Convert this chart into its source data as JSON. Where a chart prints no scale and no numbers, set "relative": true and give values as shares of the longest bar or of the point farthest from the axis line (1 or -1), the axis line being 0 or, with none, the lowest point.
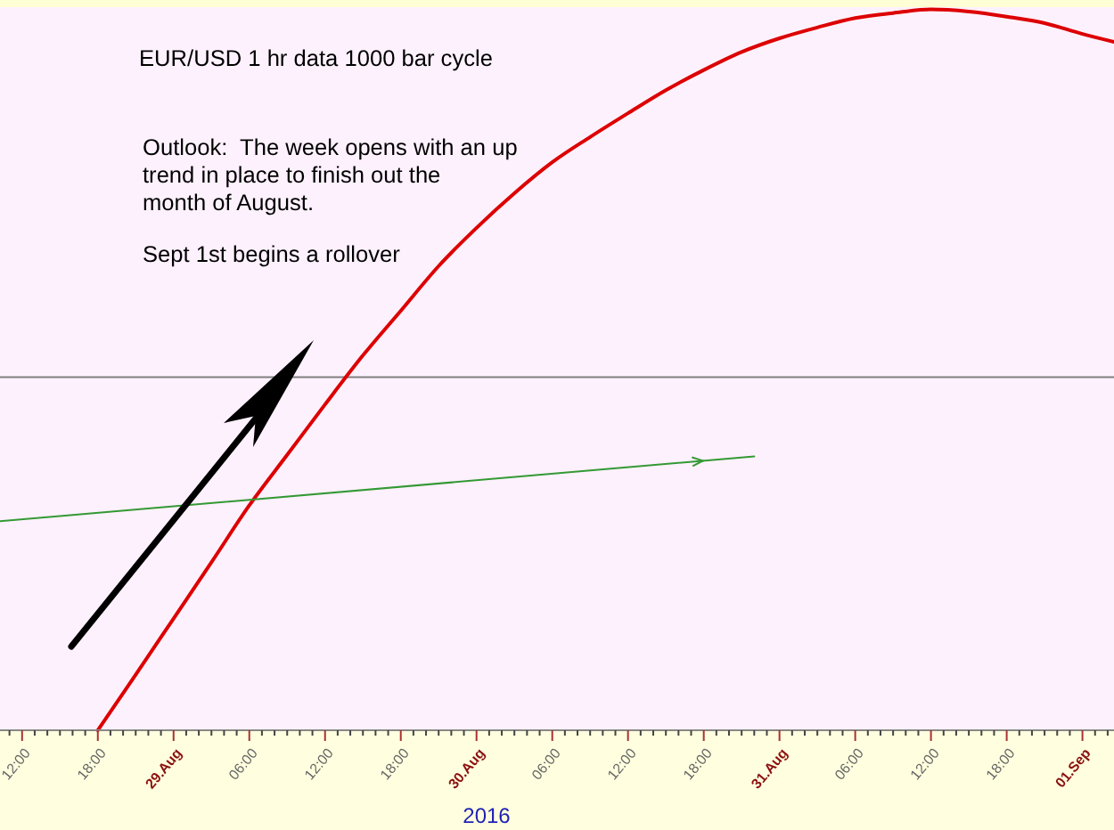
{
  "chart_data": {
    "type": "line",
    "title": "EUR/USD 1 hr data 1000 bar cycle",
    "xlabel": "2016",
    "annotations": [
      "Outlook:  The week opens with an up\ntrend in place to finish out the\nmonth of August.",
      "Sept 1st begins a rollover"
    ],
    "relative": true,
    "xlim": [
      "2016-08-28T10:15",
      "2016-09-01T02:30"
    ],
    "xticks": [
      {
        "value": "2016-08-28T11:00",
        "label": null
      },
      {
        "value": "2016-08-28T12:00",
        "label": "12:00"
      },
      {
        "value": "2016-08-28T13:00",
        "label": null
      },
      {
        "value": "2016-08-28T14:00",
        "label": null
      },
      {
        "value": "2016-08-28T15:00",
        "label": null
      },
      {
        "value": "2016-08-28T16:00",
        "label": null
      },
      {
        "value": "2016-08-28T17:00",
        "label": null
      },
      {
        "value": "2016-08-28T18:00",
        "label": "18:00"
      },
      {
        "value": "2016-08-28T19:00",
        "label": null
      },
      {
        "value": "2016-08-28T20:00",
        "label": null
      },
      {
        "value": "2016-08-28T21:00",
        "label": null
      },
      {
        "value": "2016-08-28T22:00",
        "label": null
      },
      {
        "value": "2016-08-28T23:00",
        "label": null
      },
      {
        "value": "2016-08-29T00:00",
        "label": "29.Aug"
      },
      {
        "value": "2016-08-29T01:00",
        "label": null
      },
      {
        "value": "2016-08-29T02:00",
        "label": null
      },
      {
        "value": "2016-08-29T03:00",
        "label": null
      },
      {
        "value": "2016-08-29T04:00",
        "label": null
      },
      {
        "value": "2016-08-29T05:00",
        "label": null
      },
      {
        "value": "2016-08-29T06:00",
        "label": "06:00"
      },
      {
        "value": "2016-08-29T07:00",
        "label": null
      },
      {
        "value": "2016-08-29T08:00",
        "label": null
      },
      {
        "value": "2016-08-29T09:00",
        "label": null
      },
      {
        "value": "2016-08-29T10:00",
        "label": null
      },
      {
        "value": "2016-08-29T11:00",
        "label": null
      },
      {
        "value": "2016-08-29T12:00",
        "label": "12:00"
      },
      {
        "value": "2016-08-29T13:00",
        "label": null
      },
      {
        "value": "2016-08-29T14:00",
        "label": null
      },
      {
        "value": "2016-08-29T15:00",
        "label": null
      },
      {
        "value": "2016-08-29T16:00",
        "label": null
      },
      {
        "value": "2016-08-29T17:00",
        "label": null
      },
      {
        "value": "2016-08-29T18:00",
        "label": "18:00"
      },
      {
        "value": "2016-08-29T19:00",
        "label": null
      },
      {
        "value": "2016-08-29T20:00",
        "label": null
      },
      {
        "value": "2016-08-29T21:00",
        "label": null
      },
      {
        "value": "2016-08-29T22:00",
        "label": null
      },
      {
        "value": "2016-08-29T23:00",
        "label": null
      },
      {
        "value": "2016-08-30T00:00",
        "label": "30.Aug"
      },
      {
        "value": "2016-08-30T01:00",
        "label": null
      },
      {
        "value": "2016-08-30T02:00",
        "label": null
      },
      {
        "value": "2016-08-30T03:00",
        "label": null
      },
      {
        "value": "2016-08-30T04:00",
        "label": null
      },
      {
        "value": "2016-08-30T05:00",
        "label": null
      },
      {
        "value": "2016-08-30T06:00",
        "label": "06:00"
      },
      {
        "value": "2016-08-30T07:00",
        "label": null
      },
      {
        "value": "2016-08-30T08:00",
        "label": null
      },
      {
        "value": "2016-08-30T09:00",
        "label": null
      },
      {
        "value": "2016-08-30T10:00",
        "label": null
      },
      {
        "value": "2016-08-30T11:00",
        "label": null
      },
      {
        "value": "2016-08-30T12:00",
        "label": "12:00"
      },
      {
        "value": "2016-08-30T13:00",
        "label": null
      },
      {
        "value": "2016-08-30T14:00",
        "label": null
      },
      {
        "value": "2016-08-30T15:00",
        "label": null
      },
      {
        "value": "2016-08-30T16:00",
        "label": null
      },
      {
        "value": "2016-08-30T17:00",
        "label": null
      },
      {
        "value": "2016-08-30T18:00",
        "label": "18:00"
      },
      {
        "value": "2016-08-30T19:00",
        "label": null
      },
      {
        "value": "2016-08-30T20:00",
        "label": null
      },
      {
        "value": "2016-08-30T21:00",
        "label": null
      },
      {
        "value": "2016-08-30T22:00",
        "label": null
      },
      {
        "value": "2016-08-30T23:00",
        "label": null
      },
      {
        "value": "2016-08-31T00:00",
        "label": "31.Aug"
      },
      {
        "value": "2016-08-31T01:00",
        "label": null
      },
      {
        "value": "2016-08-31T02:00",
        "label": null
      },
      {
        "value": "2016-08-31T03:00",
        "label": null
      },
      {
        "value": "2016-08-31T04:00",
        "label": null
      },
      {
        "value": "2016-08-31T05:00",
        "label": null
      },
      {
        "value": "2016-08-31T06:00",
        "label": "06:00"
      },
      {
        "value": "2016-08-31T07:00",
        "label": null
      },
      {
        "value": "2016-08-31T08:00",
        "label": null
      },
      {
        "value": "2016-08-31T09:00",
        "label": null
      },
      {
        "value": "2016-08-31T10:00",
        "label": null
      },
      {
        "value": "2016-08-31T11:00",
        "label": null
      },
      {
        "value": "2016-08-31T12:00",
        "label": "12:00"
      },
      {
        "value": "2016-08-31T13:00",
        "label": null
      },
      {
        "value": "2016-08-31T14:00",
        "label": null
      },
      {
        "value": "2016-08-31T15:00",
        "label": null
      },
      {
        "value": "2016-08-31T16:00",
        "label": null
      },
      {
        "value": "2016-08-31T17:00",
        "label": null
      },
      {
        "value": "2016-08-31T18:00",
        "label": "18:00"
      },
      {
        "value": "2016-08-31T19:00",
        "label": null
      },
      {
        "value": "2016-08-31T20:00",
        "label": null
      },
      {
        "value": "2016-08-31T21:00",
        "label": null
      },
      {
        "value": "2016-08-31T22:00",
        "label": null
      },
      {
        "value": "2016-08-31T23:00",
        "label": null
      },
      {
        "value": "2016-09-01T00:00",
        "label": "01.Sep"
      },
      {
        "value": "2016-09-01T01:00",
        "label": null
      },
      {
        "value": "2016-09-01T02:00",
        "label": null
      }
    ],
    "series": [
      {
        "color": "#dd0000",
        "x": [
          "2016-08-28T18:00",
          "2016-08-28T21:00",
          "2016-08-29T00:00",
          "2016-08-29T03:00",
          "2016-08-29T06:00",
          "2016-08-29T09:00",
          "2016-08-29T12:00",
          "2016-08-29T15:00",
          "2016-08-29T18:00",
          "2016-08-29T21:00",
          "2016-08-30T00:00",
          "2016-08-30T03:00",
          "2016-08-30T06:00",
          "2016-08-30T09:00",
          "2016-08-30T12:00",
          "2016-08-30T15:00",
          "2016-08-30T18:00",
          "2016-08-30T21:00",
          "2016-08-31T00:00",
          "2016-08-31T03:00",
          "2016-08-31T06:00",
          "2016-08-31T09:00",
          "2016-08-31T12:00",
          "2016-08-31T15:00",
          "2016-08-31T18:00",
          "2016-08-31T21:00",
          "2016-09-01T00:00",
          "2016-09-01T02:30"
        ],
        "values": [
          0,
          0.077,
          0.155,
          0.233,
          0.312,
          0.382,
          0.452,
          0.52,
          0.582,
          0.644,
          0.697,
          0.745,
          0.788,
          0.823,
          0.856,
          0.888,
          0.916,
          0.941,
          0.96,
          0.975,
          0.988,
          0.995,
          1,
          0.997,
          0.99,
          0.981,
          0.966,
          0.955
        ]
      },
      {
        "color": "#339933",
        "x": [
          "2016-08-28T10:15",
          "2016-08-30T22:00"
        ],
        "values": [
          0.29,
          0.38
        ]
      }
    ],
    "ref_lines": [
      {
        "axis": "y",
        "value": 0.49,
        "color": "#808080"
      }
    ]
  }
}
